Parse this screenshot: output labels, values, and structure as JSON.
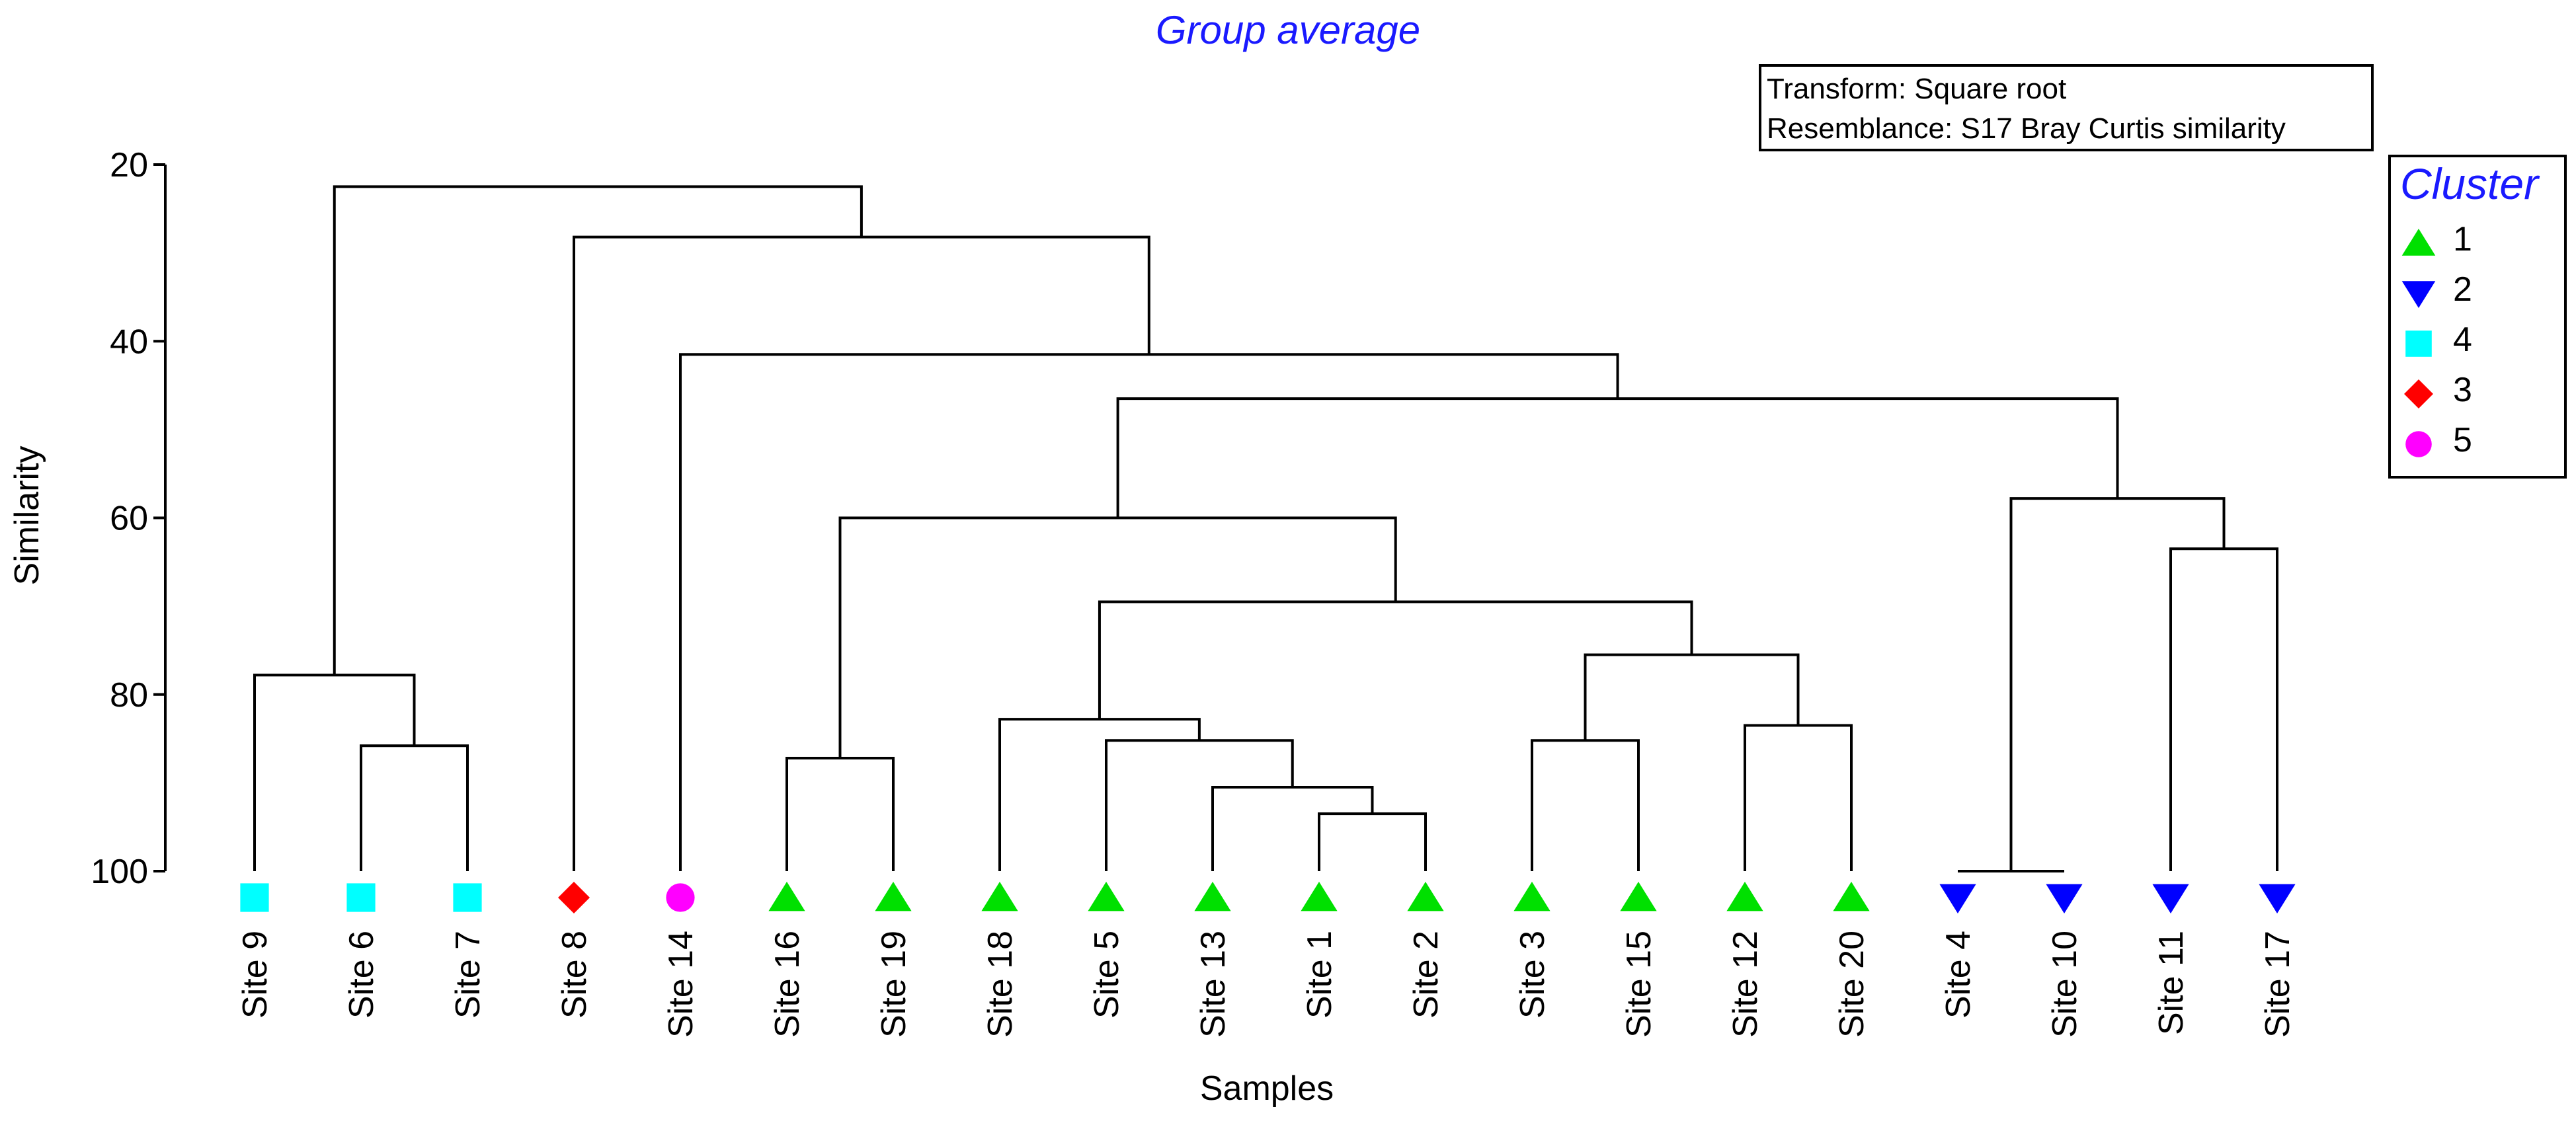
{
  "chart_data": {
    "type": "dendrogram",
    "title": "Group average",
    "xlabel": "Samples",
    "ylabel": "Similarity",
    "ylim": [
      20,
      100
    ],
    "yticks": [
      20,
      40,
      60,
      80,
      100
    ],
    "info": [
      "Transform: Square root",
      "Resemblance: S17 Bray Curtis similarity"
    ],
    "legend": {
      "title": "Cluster",
      "entries": [
        {
          "label": "1",
          "marker": "triangle-up",
          "color": "#00E000"
        },
        {
          "label": "2",
          "marker": "triangle-down",
          "color": "#0000FF"
        },
        {
          "label": "4",
          "marker": "square",
          "color": "#00FFFF"
        },
        {
          "label": "3",
          "marker": "diamond",
          "color": "#FF0000"
        },
        {
          "label": "5",
          "marker": "circle",
          "color": "#FF00FF"
        }
      ]
    },
    "leaves": [
      {
        "label": "Site 9",
        "cluster": "4"
      },
      {
        "label": "Site 6",
        "cluster": "4"
      },
      {
        "label": "Site 7",
        "cluster": "4"
      },
      {
        "label": "Site 8",
        "cluster": "3"
      },
      {
        "label": "Site 14",
        "cluster": "5"
      },
      {
        "label": "Site 16",
        "cluster": "1"
      },
      {
        "label": "Site 19",
        "cluster": "1"
      },
      {
        "label": "Site 18",
        "cluster": "1"
      },
      {
        "label": "Site 5",
        "cluster": "1"
      },
      {
        "label": "Site 13",
        "cluster": "1"
      },
      {
        "label": "Site 1",
        "cluster": "1"
      },
      {
        "label": "Site 2",
        "cluster": "1"
      },
      {
        "label": "Site 3",
        "cluster": "1"
      },
      {
        "label": "Site 15",
        "cluster": "1"
      },
      {
        "label": "Site 12",
        "cluster": "1"
      },
      {
        "label": "Site 20",
        "cluster": "1"
      },
      {
        "label": "Site 4",
        "cluster": "2"
      },
      {
        "label": "Site 10",
        "cluster": "2"
      },
      {
        "label": "Site 11",
        "cluster": "2"
      },
      {
        "label": "Site 17",
        "cluster": "2"
      }
    ],
    "merges": [
      {
        "id": "A",
        "children": [
          "Site 4",
          "Site 10"
        ],
        "similarity": 100
      },
      {
        "id": "B",
        "children": [
          "Site 1",
          "Site 2"
        ],
        "similarity": 93.5
      },
      {
        "id": "C",
        "children": [
          "Site 13",
          "B"
        ],
        "similarity": 90.5
      },
      {
        "id": "D",
        "children": [
          "Site 16",
          "Site 19"
        ],
        "similarity": 87.2
      },
      {
        "id": "E",
        "children": [
          "Site 6",
          "Site 7"
        ],
        "similarity": 85.8
      },
      {
        "id": "F",
        "children": [
          "Site 5",
          "C"
        ],
        "similarity": 85.2
      },
      {
        "id": "G",
        "children": [
          "Site 3",
          "Site 15"
        ],
        "similarity": 85.2
      },
      {
        "id": "H",
        "children": [
          "Site 12",
          "Site 20"
        ],
        "similarity": 83.5
      },
      {
        "id": "I",
        "children": [
          "Site 18",
          "F"
        ],
        "similarity": 82.8
      },
      {
        "id": "J",
        "children": [
          "Site 9",
          "E"
        ],
        "similarity": 77.8
      },
      {
        "id": "K",
        "children": [
          "G",
          "H"
        ],
        "similarity": 75.5
      },
      {
        "id": "L",
        "children": [
          "I",
          "K"
        ],
        "similarity": 69.5
      },
      {
        "id": "M",
        "children": [
          "Site 11",
          "Site 17"
        ],
        "similarity": 63.5
      },
      {
        "id": "N",
        "children": [
          "D",
          "L"
        ],
        "similarity": 60.0
      },
      {
        "id": "O",
        "children": [
          "A",
          "M"
        ],
        "similarity": 57.8
      },
      {
        "id": "P",
        "children": [
          "N",
          "O"
        ],
        "similarity": 46.5
      },
      {
        "id": "Q",
        "children": [
          "Site 14",
          "P"
        ],
        "similarity": 41.5
      },
      {
        "id": "R",
        "children": [
          "Site 8",
          "Q"
        ],
        "similarity": 28.2
      },
      {
        "id": "S",
        "children": [
          "J",
          "R"
        ],
        "similarity": 22.5
      }
    ]
  }
}
